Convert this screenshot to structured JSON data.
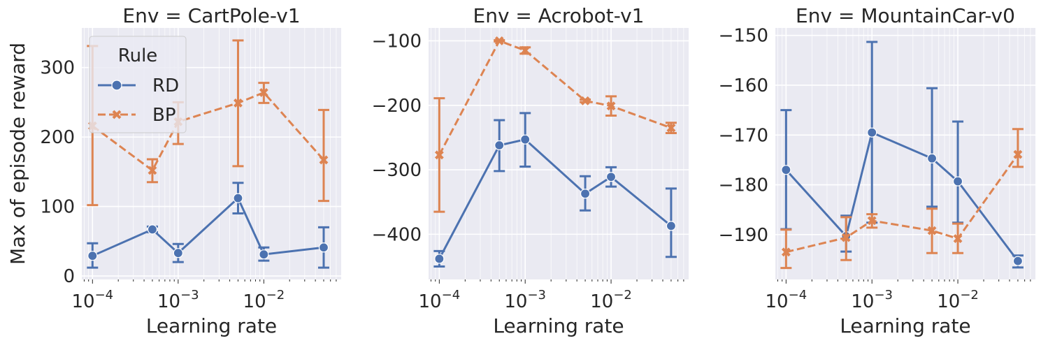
{
  "chart_data": [
    {
      "type": "line",
      "title": "Env = CartPole-v1",
      "xlabel": "Learning rate",
      "ylabel": "Max of episode reward",
      "xscale": "log",
      "xlim": [
        7.5e-05,
        0.08
      ],
      "ylim": [
        -5,
        357
      ],
      "x_ticks": [
        0.0001,
        0.001,
        0.01
      ],
      "x_tick_labels": [
        "10^-4",
        "10^-3",
        "10^-2"
      ],
      "y_ticks": [
        0,
        100,
        200,
        300
      ],
      "x": [
        0.0001,
        0.0005,
        0.001,
        0.005,
        0.01,
        0.05
      ],
      "series": [
        {
          "name": "RD",
          "color": "#4c72b0",
          "marker": "circle",
          "linestyle": "solid",
          "values": [
            29,
            67,
            33,
            112,
            31,
            41
          ],
          "ci_low": [
            12,
            63,
            20,
            90,
            22,
            12
          ],
          "ci_high": [
            47,
            71,
            46,
            134,
            41,
            70
          ]
        },
        {
          "name": "BP",
          "color": "#dd8452",
          "marker": "x",
          "linestyle": "dashed",
          "values": [
            216,
            152,
            222,
            249,
            264,
            167
          ],
          "ci_low": [
            102,
            135,
            190,
            158,
            249,
            108
          ],
          "ci_high": [
            331,
            168,
            250,
            339,
            278,
            239
          ]
        }
      ],
      "legend": {
        "title": "Rule",
        "location": "upper-left",
        "entries": [
          "RD",
          "BP"
        ]
      },
      "grid": true
    },
    {
      "type": "line",
      "title": "Env = Acrobot-v1",
      "xlabel": "Learning rate",
      "ylabel": "",
      "xscale": "log",
      "xlim": [
        7.5e-05,
        0.08
      ],
      "ylim": [
        -470,
        -80
      ],
      "x_ticks": [
        0.0001,
        0.001,
        0.01
      ],
      "x_tick_labels": [
        "10^-4",
        "10^-3",
        "10^-2"
      ],
      "y_ticks": [
        -400,
        -300,
        -200,
        -100
      ],
      "x": [
        0.0001,
        0.0005,
        0.001,
        0.005,
        0.01,
        0.05
      ],
      "series": [
        {
          "name": "RD",
          "color": "#4c72b0",
          "marker": "circle",
          "linestyle": "solid",
          "values": [
            -438,
            -262,
            -253,
            -337,
            -311,
            -387
          ],
          "ci_low": [
            -450,
            -302,
            -295,
            -363,
            -326,
            -435
          ],
          "ci_high": [
            -426,
            -223,
            -212,
            -310,
            -296,
            -329
          ]
        },
        {
          "name": "BP",
          "color": "#dd8452",
          "marker": "x",
          "linestyle": "dashed",
          "values": [
            -277,
            -100,
            -115,
            -193,
            -201,
            -235
          ],
          "ci_low": [
            -365,
            -101,
            -120,
            -195,
            -216,
            -243
          ],
          "ci_high": [
            -189,
            -99,
            -110,
            -191,
            -186,
            -227
          ]
        }
      ],
      "grid": true
    },
    {
      "type": "line",
      "title": "Env = MountainCar-v0",
      "xlabel": "Learning rate",
      "ylabel": "",
      "xscale": "log",
      "xlim": [
        7.5e-05,
        0.08
      ],
      "ylim": [
        -199,
        -148.5
      ],
      "x_ticks": [
        0.0001,
        0.001,
        0.01
      ],
      "x_tick_labels": [
        "10^-4",
        "10^-3",
        "10^-2"
      ],
      "y_ticks": [
        -190,
        -180,
        -170,
        -160,
        -150
      ],
      "x": [
        0.0001,
        0.0005,
        0.001,
        0.005,
        0.01,
        0.05
      ],
      "series": [
        {
          "name": "RD",
          "color": "#4c72b0",
          "marker": "circle",
          "linestyle": "solid",
          "values": [
            -177,
            -190.3,
            -169.5,
            -174.7,
            -179.3,
            -195.3
          ],
          "ci_low": [
            -188.9,
            -193.4,
            -187.6,
            -184.4,
            -187.6,
            -196.6
          ],
          "ci_high": [
            -165.0,
            -186.2,
            -151.3,
            -160.6,
            -167.3,
            -194.2
          ]
        },
        {
          "name": "BP",
          "color": "#dd8452",
          "marker": "x",
          "linestyle": "dashed",
          "values": [
            -193.5,
            -190.6,
            -187.2,
            -189.2,
            -190.8,
            -173.9
          ],
          "ci_low": [
            -196.7,
            -195.1,
            -188.6,
            -193.7,
            -193.7,
            -176.4
          ],
          "ci_high": [
            -189.0,
            -186.5,
            -185.9,
            -184.8,
            -187.8,
            -168.8
          ]
        }
      ],
      "grid": true
    }
  ]
}
